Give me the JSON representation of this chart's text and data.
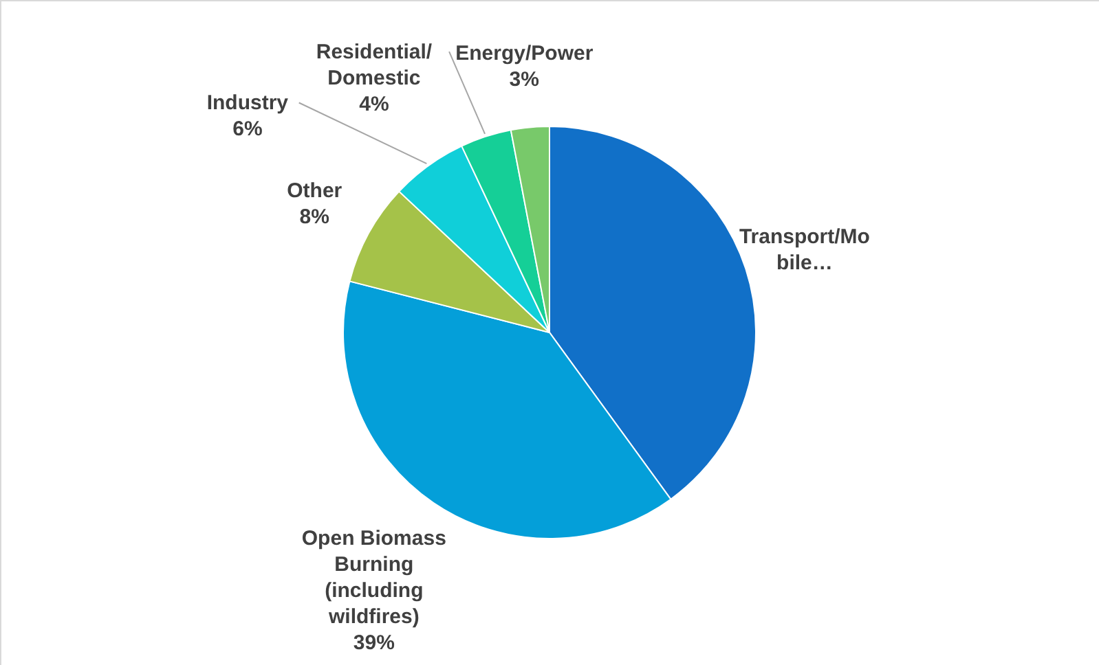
{
  "chart_data": {
    "type": "pie",
    "categories": [
      "Transport/Mobile…",
      "Open Biomass Burning (including wildfires)",
      "Other",
      "Industry",
      "Residential/ Domestic",
      "Energy/Power"
    ],
    "values": [
      40,
      39,
      8,
      6,
      4,
      3
    ],
    "value_labels": [
      null,
      "39%",
      "8%",
      "6%",
      "4%",
      "3%"
    ],
    "colors": [
      "#1170c8",
      "#049fd9",
      "#a5c249",
      "#10cfd9",
      "#15cf97",
      "#78c96a"
    ],
    "legend": false
  }
}
